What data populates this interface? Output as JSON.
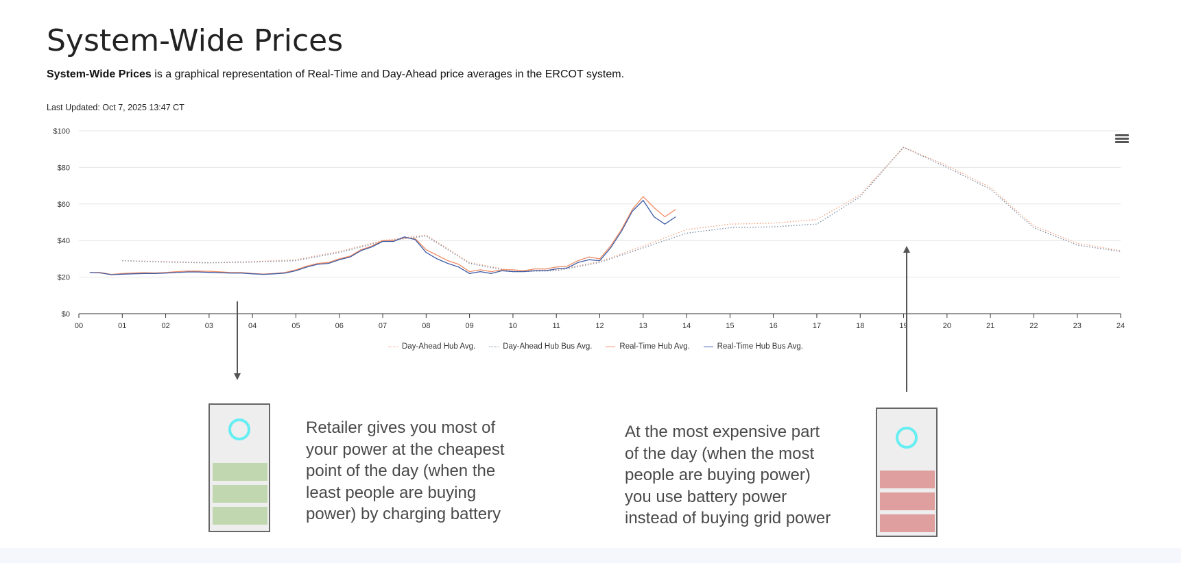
{
  "header": {
    "title": "System-Wide Prices",
    "description_bold": "System-Wide Prices",
    "description_rest": " is a graphical representation of Real-Time and Day-Ahead price averages in the ERCOT system.",
    "last_updated": "Last Updated: Oct 7, 2025 13:47 CT"
  },
  "chart_menu_icon": "hamburger-menu-icon",
  "chart_data": {
    "type": "line",
    "title": "",
    "xlabel": "",
    "ylabel": "",
    "xlim": [
      0,
      24
    ],
    "ylim": [
      0,
      100
    ],
    "x_ticks": [
      "00",
      "01",
      "02",
      "03",
      "04",
      "05",
      "06",
      "07",
      "08",
      "09",
      "10",
      "11",
      "12",
      "13",
      "14",
      "15",
      "16",
      "17",
      "18",
      "19",
      "20",
      "21",
      "22",
      "23",
      "24"
    ],
    "y_ticks": [
      {
        "value": 0,
        "label": "$0"
      },
      {
        "value": 20,
        "label": "$20"
      },
      {
        "value": 40,
        "label": "$40"
      },
      {
        "value": 60,
        "label": "$60"
      },
      {
        "value": 80,
        "label": "$80"
      },
      {
        "value": 100,
        "label": "$100"
      }
    ],
    "grid": true,
    "legend_position": "bottom-center",
    "series": [
      {
        "name": "Day-Ahead Hub Avg.",
        "color": "#f4a582",
        "style": "dotted",
        "points": [
          [
            1,
            29
          ],
          [
            2,
            28.5
          ],
          [
            3,
            28
          ],
          [
            4,
            28.5
          ],
          [
            5,
            29.5
          ],
          [
            6,
            34
          ],
          [
            7,
            40
          ],
          [
            8,
            43
          ],
          [
            9,
            28
          ],
          [
            10,
            23.5
          ],
          [
            11,
            24
          ],
          [
            12,
            28.5
          ],
          [
            13,
            37
          ],
          [
            14,
            46
          ],
          [
            15,
            49
          ],
          [
            16,
            49.5
          ],
          [
            17,
            51.5
          ],
          [
            18,
            65
          ],
          [
            19,
            91
          ],
          [
            20,
            81
          ],
          [
            21,
            69
          ],
          [
            22,
            48
          ],
          [
            23,
            38.5
          ],
          [
            24,
            34.5
          ]
        ]
      },
      {
        "name": "Day-Ahead Hub Bus Avg.",
        "color": "#7f8fa6",
        "style": "dotted",
        "points": [
          [
            1,
            29
          ],
          [
            2,
            28.2
          ],
          [
            3,
            27.8
          ],
          [
            4,
            28.2
          ],
          [
            5,
            29
          ],
          [
            6,
            33.5
          ],
          [
            7,
            39.5
          ],
          [
            8,
            42.5
          ],
          [
            9,
            27.5
          ],
          [
            10,
            23
          ],
          [
            11,
            23.5
          ],
          [
            12,
            28
          ],
          [
            13,
            36
          ],
          [
            14,
            44
          ],
          [
            15,
            47
          ],
          [
            16,
            47.5
          ],
          [
            17,
            49
          ],
          [
            18,
            64
          ],
          [
            19,
            91
          ],
          [
            20,
            80
          ],
          [
            21,
            68
          ],
          [
            22,
            47
          ],
          [
            23,
            37.5
          ],
          [
            24,
            34
          ]
        ]
      },
      {
        "name": "Real-Time Hub Avg.",
        "color": "#ef8a62",
        "style": "solid",
        "points": [
          [
            0.25,
            22.5
          ],
          [
            0.5,
            22.5
          ],
          [
            0.75,
            21.5
          ],
          [
            1,
            22
          ],
          [
            1.25,
            22.3
          ],
          [
            1.5,
            22.4
          ],
          [
            1.75,
            22.3
          ],
          [
            2,
            22.5
          ],
          [
            2.25,
            23
          ],
          [
            2.5,
            23.3
          ],
          [
            2.75,
            23.3
          ],
          [
            3,
            23.2
          ],
          [
            3.25,
            22.9
          ],
          [
            3.5,
            22.5
          ],
          [
            3.75,
            22.5
          ],
          [
            4,
            22
          ],
          [
            4.25,
            21.7
          ],
          [
            4.5,
            22
          ],
          [
            4.75,
            22.5
          ],
          [
            5,
            24
          ],
          [
            5.25,
            26
          ],
          [
            5.5,
            27.5
          ],
          [
            5.75,
            28
          ],
          [
            6,
            30
          ],
          [
            6.25,
            31.5
          ],
          [
            6.5,
            35
          ],
          [
            6.75,
            37
          ],
          [
            7,
            40
          ],
          [
            7.25,
            40
          ],
          [
            7.5,
            41.5
          ],
          [
            7.75,
            41
          ],
          [
            8,
            35
          ],
          [
            8.25,
            32
          ],
          [
            8.5,
            29
          ],
          [
            8.75,
            27
          ],
          [
            9,
            23
          ],
          [
            9.25,
            24
          ],
          [
            9.5,
            23
          ],
          [
            9.75,
            24
          ],
          [
            10,
            24
          ],
          [
            10.25,
            23.5
          ],
          [
            10.5,
            24.5
          ],
          [
            10.75,
            24.5
          ],
          [
            11,
            25.5
          ],
          [
            11.25,
            26
          ],
          [
            11.5,
            29
          ],
          [
            11.75,
            31
          ],
          [
            12,
            30
          ],
          [
            12.25,
            37
          ],
          [
            12.5,
            46
          ],
          [
            12.75,
            57
          ],
          [
            13,
            64
          ],
          [
            13.25,
            58
          ],
          [
            13.5,
            53
          ],
          [
            13.75,
            57
          ]
        ]
      },
      {
        "name": "Real-Time Hub Bus Avg.",
        "color": "#3b5ba5",
        "style": "solid",
        "points": [
          [
            0.25,
            22.5
          ],
          [
            0.5,
            22.3
          ],
          [
            0.75,
            21.3
          ],
          [
            1,
            21.6
          ],
          [
            1.25,
            21.8
          ],
          [
            1.5,
            22
          ],
          [
            1.75,
            22
          ],
          [
            2,
            22.2
          ],
          [
            2.25,
            22.5
          ],
          [
            2.5,
            22.8
          ],
          [
            2.75,
            22.8
          ],
          [
            3,
            22.6
          ],
          [
            3.25,
            22.4
          ],
          [
            3.5,
            22.2
          ],
          [
            3.75,
            22.2
          ],
          [
            4,
            21.8
          ],
          [
            4.25,
            21.5
          ],
          [
            4.5,
            21.8
          ],
          [
            4.75,
            22.2
          ],
          [
            5,
            23.5
          ],
          [
            5.25,
            25.5
          ],
          [
            5.5,
            27
          ],
          [
            5.75,
            27.5
          ],
          [
            6,
            29.5
          ],
          [
            6.25,
            31
          ],
          [
            6.5,
            34.5
          ],
          [
            6.75,
            36.5
          ],
          [
            7,
            39.5
          ],
          [
            7.25,
            39.5
          ],
          [
            7.5,
            42
          ],
          [
            7.75,
            40.5
          ],
          [
            8,
            33.5
          ],
          [
            8.25,
            30
          ],
          [
            8.5,
            27.5
          ],
          [
            8.75,
            25.5
          ],
          [
            9,
            22
          ],
          [
            9.25,
            23
          ],
          [
            9.5,
            22
          ],
          [
            9.75,
            23.5
          ],
          [
            10,
            23
          ],
          [
            10.25,
            23
          ],
          [
            10.5,
            23.5
          ],
          [
            10.75,
            23.5
          ],
          [
            11,
            24.5
          ],
          [
            11.25,
            25
          ],
          [
            11.5,
            28
          ],
          [
            11.75,
            29.5
          ],
          [
            12,
            29
          ],
          [
            12.25,
            36
          ],
          [
            12.5,
            45
          ],
          [
            12.75,
            56
          ],
          [
            13,
            62
          ],
          [
            13.25,
            53
          ],
          [
            13.5,
            49
          ],
          [
            13.75,
            53
          ]
        ]
      }
    ]
  },
  "annotations": {
    "left_note": "Retailer gives you most of\nyour power at the cheapest\npoint of the day (when the\nleast people are buying\npower) by charging battery",
    "right_note": "At the most expensive part\nof the day (when the most\npeople are buying power)\nyou use battery power\ninstead of buying grid power",
    "left_battery_color": "#c1d7b0",
    "right_battery_color": "#df9f9f",
    "ring_color": "#66eef2"
  }
}
